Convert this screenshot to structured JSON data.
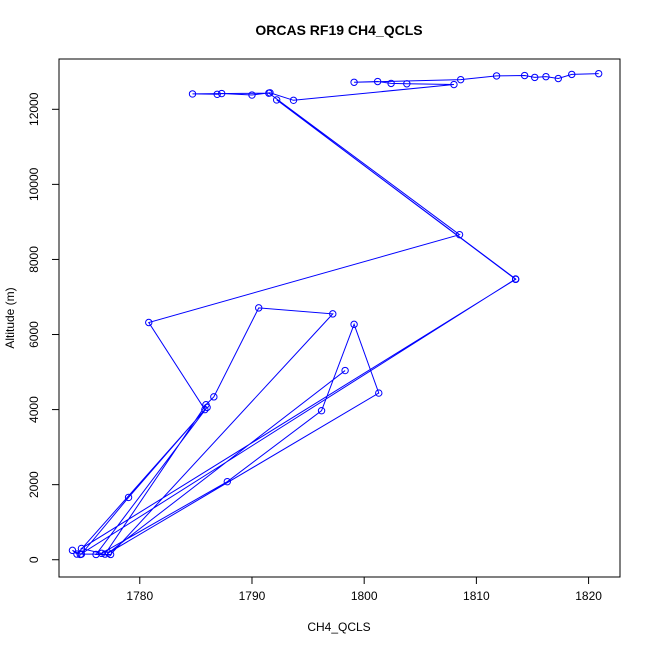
{
  "chart_data": {
    "type": "line",
    "title": "ORCAS RF19 CH4_QCLS",
    "xlabel": "CH4_QCLS",
    "ylabel": "Altitude (m)",
    "xlim": [
      1772.8,
      1822.8
    ],
    "ylim": [
      -460,
      13340
    ],
    "x_ticks": [
      1780,
      1790,
      1800,
      1810,
      1820
    ],
    "y_ticks": [
      0,
      2000,
      4000,
      6000,
      8000,
      10000,
      12000
    ],
    "grid": false,
    "series_color": "#0000ff",
    "series": [
      {
        "points": [
          [
            1820.9,
            12950
          ],
          [
            1818.5,
            12930
          ],
          [
            1817.3,
            12820
          ],
          [
            1816.2,
            12870
          ],
          [
            1815.2,
            12850
          ],
          [
            1814.3,
            12900
          ],
          [
            1811.8,
            12890
          ],
          [
            1808.6,
            12790
          ],
          [
            1799.1,
            12720
          ],
          [
            1801.2,
            12740
          ],
          [
            1802.4,
            12690
          ],
          [
            1803.8,
            12680
          ],
          [
            1808.0,
            12660
          ],
          [
            1793.7,
            12240
          ],
          [
            1791.6,
            12440
          ],
          [
            1790.0,
            12380
          ],
          [
            1787.3,
            12420
          ],
          [
            1786.9,
            12400
          ],
          [
            1784.7,
            12410
          ],
          [
            1791.5,
            12430
          ],
          [
            1808.5,
            8660
          ],
          [
            1780.8,
            6320
          ],
          [
            1785.8,
            4000
          ],
          [
            1779.0,
            1660
          ],
          [
            1774.8,
            150
          ],
          [
            1776.9,
            150
          ],
          [
            1785.9,
            4130
          ],
          [
            1786.6,
            4340
          ],
          [
            1790.6,
            6710
          ],
          [
            1797.2,
            6550
          ],
          [
            1777.4,
            140
          ],
          [
            1776.1,
            140
          ],
          [
            1786.0,
            4060
          ],
          [
            1774.4,
            150
          ],
          [
            1774.0,
            250
          ],
          [
            1774.7,
            140
          ],
          [
            1813.5,
            7480
          ],
          [
            1792.2,
            12250
          ],
          [
            1813.5,
            7470
          ],
          [
            1774.8,
            300
          ],
          [
            1776.6,
            170
          ],
          [
            1787.8,
            2080
          ],
          [
            1796.2,
            3970
          ],
          [
            1799.1,
            6270
          ],
          [
            1801.3,
            4440
          ],
          [
            1777.2,
            180
          ],
          [
            1798.3,
            5040
          ]
        ]
      }
    ]
  }
}
